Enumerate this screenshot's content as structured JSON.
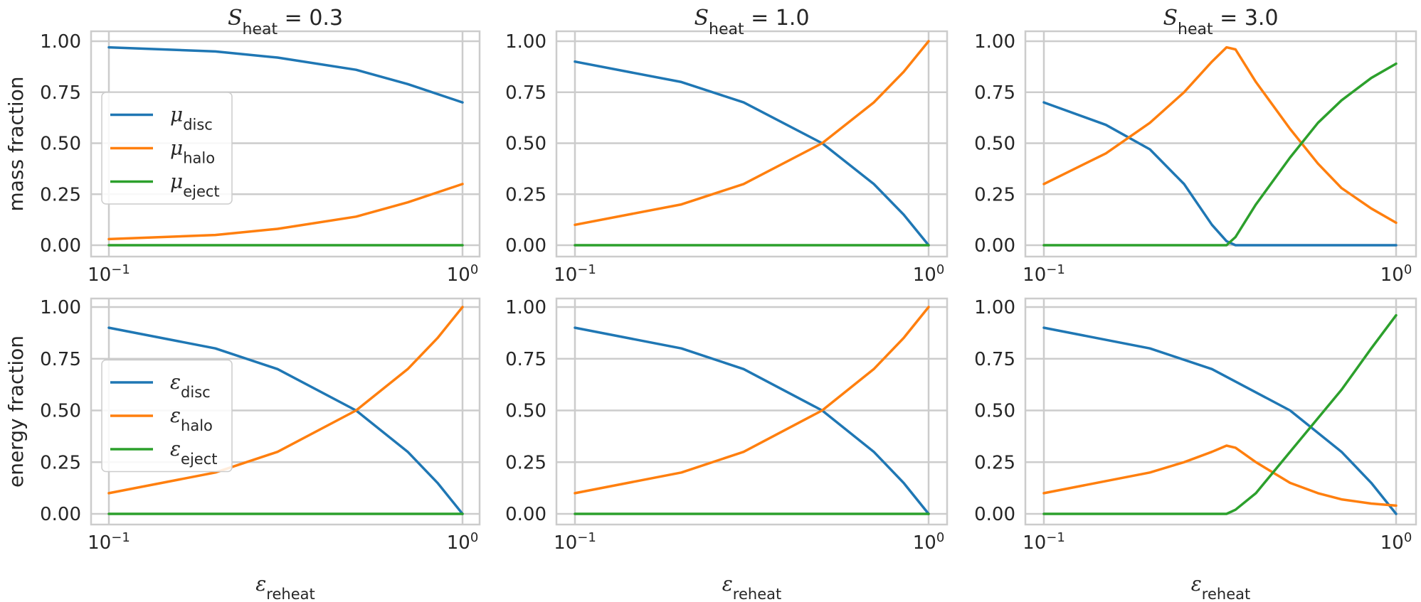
{
  "chart_data": [
    {
      "type": "line",
      "title": {
        "symbol": "S",
        "subscript": "heat",
        "rest": " = 0.3"
      },
      "ylabel": "mass fraction",
      "xlabel": null,
      "xscale": "log",
      "xlim": [
        0.1,
        1.0
      ],
      "ylim": [
        -0.04,
        1.04
      ],
      "xticks": [
        {
          "base": "10",
          "exp": "−1"
        },
        {
          "base": "10",
          "exp": "0"
        }
      ],
      "yticks": [
        "0.00",
        "0.25",
        "0.50",
        "0.75",
        "1.00"
      ],
      "grid": true,
      "legend": {
        "placement": "center-left",
        "entries": [
          {
            "symbol": "μ",
            "subscript": "disc",
            "color": "#1f77b4"
          },
          {
            "symbol": "μ",
            "subscript": "halo",
            "color": "#ff7f0e"
          },
          {
            "symbol": "μ",
            "subscript": "eject",
            "color": "#2ca02c"
          }
        ]
      },
      "series": [
        {
          "color": "#1f77b4",
          "points": [
            [
              0.1,
              0.97
            ],
            [
              0.2,
              0.95
            ],
            [
              0.3,
              0.92
            ],
            [
              0.5,
              0.86
            ],
            [
              0.7,
              0.79
            ],
            [
              1.0,
              0.7
            ]
          ]
        },
        {
          "color": "#ff7f0e",
          "points": [
            [
              0.1,
              0.03
            ],
            [
              0.2,
              0.05
            ],
            [
              0.3,
              0.08
            ],
            [
              0.5,
              0.14
            ],
            [
              0.7,
              0.21
            ],
            [
              1.0,
              0.3
            ]
          ]
        },
        {
          "color": "#2ca02c",
          "points": [
            [
              0.1,
              0.0
            ],
            [
              1.0,
              0.0
            ]
          ]
        }
      ]
    },
    {
      "type": "line",
      "title": {
        "symbol": "S",
        "subscript": "heat",
        "rest": " = 1.0"
      },
      "ylabel": null,
      "xlabel": null,
      "xscale": "log",
      "xlim": [
        0.1,
        1.0
      ],
      "ylim": [
        -0.04,
        1.04
      ],
      "xticks": [
        {
          "base": "10",
          "exp": "−1"
        },
        {
          "base": "10",
          "exp": "0"
        }
      ],
      "yticks": [
        "0.00",
        "0.25",
        "0.50",
        "0.75",
        "1.00"
      ],
      "grid": true,
      "legend": null,
      "series": [
        {
          "color": "#1f77b4",
          "points": [
            [
              0.1,
              0.9
            ],
            [
              0.2,
              0.8
            ],
            [
              0.3,
              0.7
            ],
            [
              0.5,
              0.5
            ],
            [
              0.7,
              0.3
            ],
            [
              0.85,
              0.15
            ],
            [
              1.0,
              0.0
            ]
          ]
        },
        {
          "color": "#ff7f0e",
          "points": [
            [
              0.1,
              0.1
            ],
            [
              0.2,
              0.2
            ],
            [
              0.3,
              0.3
            ],
            [
              0.5,
              0.5
            ],
            [
              0.7,
              0.7
            ],
            [
              0.85,
              0.85
            ],
            [
              1.0,
              1.0
            ]
          ]
        },
        {
          "color": "#2ca02c",
          "points": [
            [
              0.1,
              0.0
            ],
            [
              1.0,
              0.0
            ]
          ]
        }
      ]
    },
    {
      "type": "line",
      "title": {
        "symbol": "S",
        "subscript": "heat",
        "rest": " = 3.0"
      },
      "ylabel": null,
      "xlabel": null,
      "xscale": "log",
      "xlim": [
        0.1,
        1.0
      ],
      "ylim": [
        -0.04,
        1.04
      ],
      "xticks": [
        {
          "base": "10",
          "exp": "−1"
        },
        {
          "base": "10",
          "exp": "0"
        }
      ],
      "yticks": [
        "0.00",
        "0.25",
        "0.50",
        "0.75",
        "1.00"
      ],
      "grid": true,
      "legend": null,
      "series": [
        {
          "color": "#1f77b4",
          "points": [
            [
              0.1,
              0.7
            ],
            [
              0.15,
              0.59
            ],
            [
              0.2,
              0.47
            ],
            [
              0.25,
              0.3
            ],
            [
              0.3,
              0.1
            ],
            [
              0.33,
              0.02
            ],
            [
              0.35,
              0.0
            ],
            [
              1.0,
              0.0
            ]
          ]
        },
        {
          "color": "#ff7f0e",
          "points": [
            [
              0.1,
              0.3
            ],
            [
              0.15,
              0.45
            ],
            [
              0.2,
              0.6
            ],
            [
              0.25,
              0.75
            ],
            [
              0.3,
              0.9
            ],
            [
              0.33,
              0.97
            ],
            [
              0.35,
              0.96
            ],
            [
              0.4,
              0.8
            ],
            [
              0.5,
              0.57
            ],
            [
              0.6,
              0.4
            ],
            [
              0.7,
              0.28
            ],
            [
              0.85,
              0.18
            ],
            [
              1.0,
              0.11
            ]
          ]
        },
        {
          "color": "#2ca02c",
          "points": [
            [
              0.1,
              0.0
            ],
            [
              0.33,
              0.0
            ],
            [
              0.35,
              0.04
            ],
            [
              0.4,
              0.2
            ],
            [
              0.5,
              0.43
            ],
            [
              0.6,
              0.6
            ],
            [
              0.7,
              0.71
            ],
            [
              0.85,
              0.82
            ],
            [
              1.0,
              0.89
            ]
          ]
        }
      ]
    },
    {
      "type": "line",
      "title": null,
      "ylabel": "energy fraction",
      "xlabel": {
        "symbol": "ε",
        "subscript": "reheat"
      },
      "xscale": "log",
      "xlim": [
        0.1,
        1.0
      ],
      "ylim": [
        -0.04,
        1.04
      ],
      "xticks": [
        {
          "base": "10",
          "exp": "−1"
        },
        {
          "base": "10",
          "exp": "0"
        }
      ],
      "yticks": [
        "0.00",
        "0.25",
        "0.50",
        "0.75",
        "1.00"
      ],
      "grid": true,
      "legend": {
        "placement": "center-left",
        "entries": [
          {
            "symbol": "ε",
            "subscript": "disc",
            "color": "#1f77b4"
          },
          {
            "symbol": "ε",
            "subscript": "halo",
            "color": "#ff7f0e"
          },
          {
            "symbol": "ε",
            "subscript": "eject",
            "color": "#2ca02c"
          }
        ]
      },
      "series": [
        {
          "color": "#1f77b4",
          "points": [
            [
              0.1,
              0.9
            ],
            [
              0.2,
              0.8
            ],
            [
              0.3,
              0.7
            ],
            [
              0.5,
              0.5
            ],
            [
              0.7,
              0.3
            ],
            [
              0.85,
              0.15
            ],
            [
              1.0,
              0.0
            ]
          ]
        },
        {
          "color": "#ff7f0e",
          "points": [
            [
              0.1,
              0.1
            ],
            [
              0.2,
              0.2
            ],
            [
              0.3,
              0.3
            ],
            [
              0.5,
              0.5
            ],
            [
              0.7,
              0.7
            ],
            [
              0.85,
              0.85
            ],
            [
              1.0,
              1.0
            ]
          ]
        },
        {
          "color": "#2ca02c",
          "points": [
            [
              0.1,
              0.0
            ],
            [
              1.0,
              0.0
            ]
          ]
        }
      ]
    },
    {
      "type": "line",
      "title": null,
      "ylabel": null,
      "xlabel": {
        "symbol": "ε",
        "subscript": "reheat"
      },
      "xscale": "log",
      "xlim": [
        0.1,
        1.0
      ],
      "ylim": [
        -0.04,
        1.04
      ],
      "xticks": [
        {
          "base": "10",
          "exp": "−1"
        },
        {
          "base": "10",
          "exp": "0"
        }
      ],
      "yticks": [
        "0.00",
        "0.25",
        "0.50",
        "0.75",
        "1.00"
      ],
      "grid": true,
      "legend": null,
      "series": [
        {
          "color": "#1f77b4",
          "points": [
            [
              0.1,
              0.9
            ],
            [
              0.2,
              0.8
            ],
            [
              0.3,
              0.7
            ],
            [
              0.5,
              0.5
            ],
            [
              0.7,
              0.3
            ],
            [
              0.85,
              0.15
            ],
            [
              1.0,
              0.0
            ]
          ]
        },
        {
          "color": "#ff7f0e",
          "points": [
            [
              0.1,
              0.1
            ],
            [
              0.2,
              0.2
            ],
            [
              0.3,
              0.3
            ],
            [
              0.5,
              0.5
            ],
            [
              0.7,
              0.7
            ],
            [
              0.85,
              0.85
            ],
            [
              1.0,
              1.0
            ]
          ]
        },
        {
          "color": "#2ca02c",
          "points": [
            [
              0.1,
              0.0
            ],
            [
              1.0,
              0.0
            ]
          ]
        }
      ]
    },
    {
      "type": "line",
      "title": null,
      "ylabel": null,
      "xlabel": {
        "symbol": "ε",
        "subscript": "reheat"
      },
      "xscale": "log",
      "xlim": [
        0.1,
        1.0
      ],
      "ylim": [
        -0.04,
        1.0
      ],
      "xticks": [
        {
          "base": "10",
          "exp": "−1"
        },
        {
          "base": "10",
          "exp": "0"
        }
      ],
      "yticks": [
        "0.00",
        "0.25",
        "0.50",
        "0.75",
        "1.00"
      ],
      "grid": true,
      "legend": null,
      "series": [
        {
          "color": "#1f77b4",
          "points": [
            [
              0.1,
              0.9
            ],
            [
              0.2,
              0.8
            ],
            [
              0.3,
              0.7
            ],
            [
              0.5,
              0.5
            ],
            [
              0.7,
              0.3
            ],
            [
              0.85,
              0.15
            ],
            [
              1.0,
              0.0
            ]
          ]
        },
        {
          "color": "#ff7f0e",
          "points": [
            [
              0.1,
              0.1
            ],
            [
              0.2,
              0.2
            ],
            [
              0.25,
              0.25
            ],
            [
              0.3,
              0.3
            ],
            [
              0.33,
              0.33
            ],
            [
              0.35,
              0.32
            ],
            [
              0.4,
              0.25
            ],
            [
              0.5,
              0.15
            ],
            [
              0.6,
              0.1
            ],
            [
              0.7,
              0.07
            ],
            [
              0.85,
              0.05
            ],
            [
              1.0,
              0.04
            ]
          ]
        },
        {
          "color": "#2ca02c",
          "points": [
            [
              0.1,
              0.0
            ],
            [
              0.33,
              0.0
            ],
            [
              0.35,
              0.02
            ],
            [
              0.4,
              0.1
            ],
            [
              0.5,
              0.3
            ],
            [
              0.7,
              0.6
            ],
            [
              0.85,
              0.8
            ],
            [
              1.0,
              0.96
            ]
          ]
        }
      ]
    }
  ]
}
